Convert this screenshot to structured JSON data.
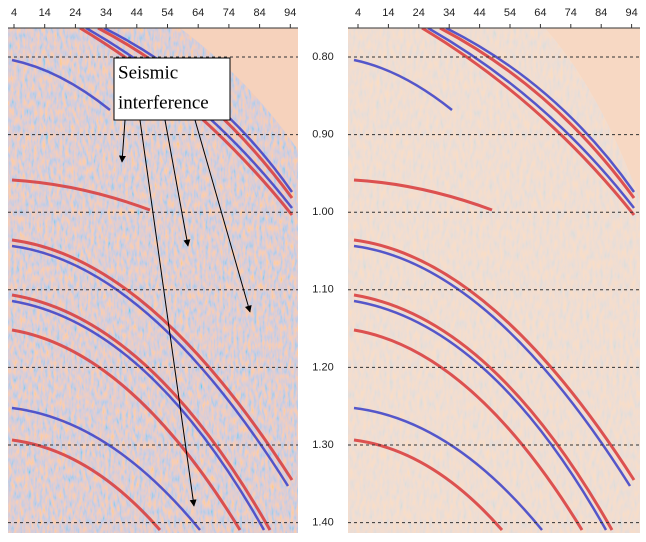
{
  "left_panel": {
    "x_ticks": [
      "4",
      "14",
      "24",
      "34",
      "44",
      "54",
      "64",
      "74",
      "84",
      "94"
    ]
  },
  "right_panel": {
    "x_ticks": [
      "4",
      "14",
      "24",
      "34",
      "44",
      "54",
      "64",
      "74",
      "84",
      "94"
    ]
  },
  "y_labels": [
    "0.80",
    "0.90",
    "1.00",
    "1.10",
    "1.20",
    "1.30",
    "1.40"
  ],
  "annotation": {
    "lines": [
      "Seismic",
      "interference"
    ]
  }
}
